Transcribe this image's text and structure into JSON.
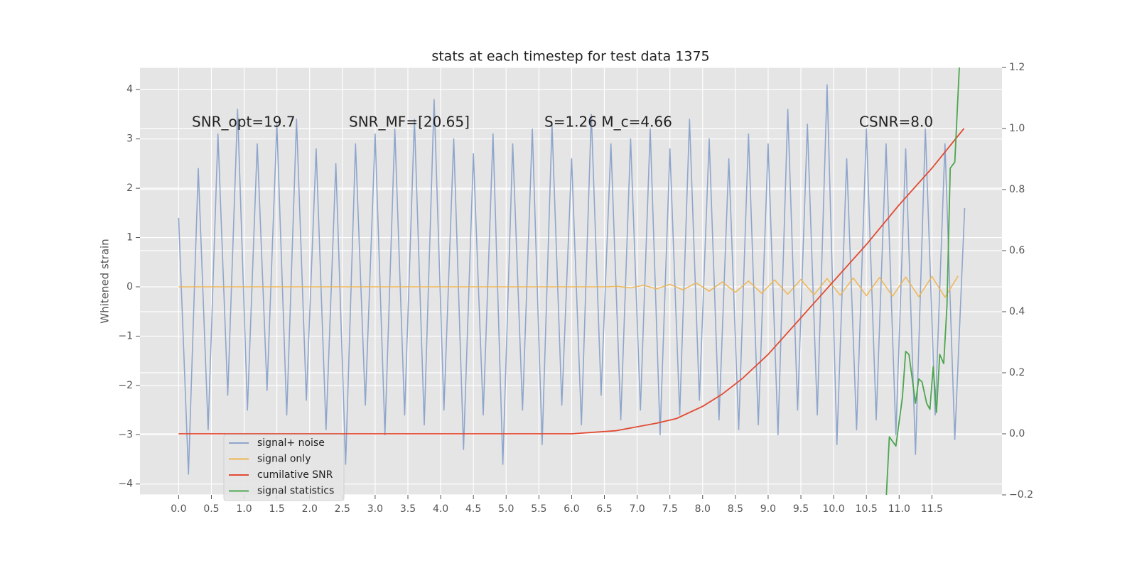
{
  "chart_data": {
    "type": "line",
    "title": "stats at each timestep for test data 1375",
    "ylabel": "Whitened strain",
    "annotations": [
      "SNR_opt=19.7",
      "SNR_MF=[20.65]",
      "S=1.26   M_c=4.66",
      "CSNR=8.0"
    ],
    "xlim": [
      -0.59,
      12.57
    ],
    "xticks": [
      {
        "value": 0,
        "label": "0.0"
      },
      0.5,
      {
        "value": 1,
        "label": "1.0"
      },
      1.5,
      {
        "value": 2,
        "label": "2.0"
      },
      2.5,
      {
        "value": 3,
        "label": "3.0"
      },
      3.5,
      {
        "value": 4,
        "label": "4.0"
      },
      4.5,
      {
        "value": 5,
        "label": "5.0"
      },
      5.5,
      {
        "value": 6,
        "label": "6.0"
      },
      6.5,
      {
        "value": 7,
        "label": "7.0"
      },
      7.5,
      {
        "value": 8,
        "label": "8.0"
      },
      8.5,
      {
        "value": 9,
        "label": "9.0"
      },
      9.5,
      {
        "value": 10,
        "label": "10.0"
      },
      10.5,
      {
        "value": 11,
        "label": "11.0"
      },
      11.5
    ],
    "ylim": [
      -4.22,
      4.45
    ],
    "yticks": [
      {
        "value": -4,
        "label": "−4"
      },
      {
        "value": -3,
        "label": "−3"
      },
      {
        "value": -2,
        "label": "−2"
      },
      {
        "value": -1,
        "label": "−1"
      },
      0,
      1,
      2,
      3,
      4
    ],
    "y2lim": [
      -0.2,
      1.2
    ],
    "y2ticks": [
      {
        "value": -0.2,
        "label": "−0.2"
      },
      {
        "value": 0,
        "label": "0.0"
      },
      0.2,
      0.4,
      0.6,
      0.8,
      {
        "value": 1,
        "label": "1.0"
      },
      1.2
    ],
    "grid": true,
    "legend": "lower left",
    "series": [
      {
        "name": "signal+ noise",
        "color": "#8fa6cc",
        "x": [
          0,
          0.15,
          0.3,
          0.45,
          0.6,
          0.75,
          0.9,
          1.05,
          1.2,
          1.35,
          1.5,
          1.65,
          1.8,
          1.95,
          2.1,
          2.25,
          2.4,
          2.55,
          2.7,
          2.85,
          3.0,
          3.15,
          3.3,
          3.45,
          3.6,
          3.75,
          3.9,
          4.05,
          4.2,
          4.35,
          4.5,
          4.65,
          4.8,
          4.95,
          5.1,
          5.25,
          5.4,
          5.55,
          5.7,
          5.85,
          6.0,
          6.15,
          6.3,
          6.45,
          6.6,
          6.75,
          6.9,
          7.05,
          7.2,
          7.35,
          7.5,
          7.65,
          7.8,
          7.95,
          8.1,
          8.25,
          8.4,
          8.55,
          8.7,
          8.85,
          9.0,
          9.15,
          9.3,
          9.45,
          9.6,
          9.75,
          9.9,
          10.05,
          10.2,
          10.35,
          10.5,
          10.65,
          10.8,
          10.95,
          11.1,
          11.25,
          11.4,
          11.55,
          11.7,
          11.85,
          12.0
        ],
        "values": [
          1.4,
          -3.8,
          2.4,
          -2.9,
          3.1,
          -2.2,
          3.6,
          -2.5,
          2.9,
          -2.1,
          3.3,
          -2.6,
          3.4,
          -2.3,
          2.8,
          -2.9,
          2.5,
          -3.6,
          2.9,
          -2.4,
          3.1,
          -3.0,
          3.2,
          -2.6,
          3.4,
          -2.8,
          3.8,
          -2.5,
          3.0,
          -3.3,
          2.7,
          -2.6,
          3.1,
          -3.6,
          2.9,
          -2.5,
          3.2,
          -3.2,
          3.3,
          -2.4,
          2.6,
          -2.8,
          3.5,
          -2.2,
          2.9,
          -2.7,
          3.0,
          -2.5,
          3.2,
          -3.0,
          2.8,
          -2.6,
          3.4,
          -2.3,
          3.0,
          -2.7,
          2.6,
          -2.9,
          3.1,
          -2.8,
          2.9,
          -3.0,
          3.6,
          -2.5,
          3.3,
          -2.6,
          4.1,
          -3.2,
          2.6,
          -2.9,
          3.2,
          -2.7,
          2.9,
          -3.0,
          2.8,
          -3.4,
          3.2,
          -2.6,
          2.9,
          -3.1,
          1.6
        ]
      },
      {
        "name": "signal only",
        "color": "#eeb44f",
        "x": [
          0,
          6.5,
          6.7,
          6.9,
          7.1,
          7.3,
          7.5,
          7.7,
          7.9,
          8.1,
          8.3,
          8.5,
          8.7,
          8.9,
          9.1,
          9.3,
          9.5,
          9.7,
          9.9,
          10.1,
          10.3,
          10.5,
          10.7,
          10.9,
          11.1,
          11.3,
          11.5,
          11.7,
          11.9
        ],
        "values": [
          0,
          0,
          0.01,
          -0.02,
          0.03,
          -0.04,
          0.05,
          -0.06,
          0.08,
          -0.09,
          0.1,
          -0.11,
          0.12,
          -0.13,
          0.14,
          -0.15,
          0.15,
          -0.16,
          0.17,
          -0.17,
          0.18,
          -0.18,
          0.19,
          -0.19,
          0.2,
          -0.2,
          0.21,
          -0.21,
          0.22
        ]
      },
      {
        "name": "cumilative SNR",
        "color": "#e24a33",
        "axis": "y2",
        "x": [
          0,
          6,
          6.67,
          7.3,
          7.6,
          8.0,
          8.3,
          8.6,
          9.0,
          9.5,
          10.0,
          10.5,
          11.0,
          11.5,
          11.99
        ],
        "values": [
          0,
          0,
          0.01,
          0.035,
          0.05,
          0.09,
          0.13,
          0.18,
          0.26,
          0.38,
          0.5,
          0.62,
          0.75,
          0.87,
          1.0
        ]
      },
      {
        "name": "signal statistics",
        "color": "#4ca64f",
        "axis": "y2",
        "x": [
          10.8,
          10.85,
          10.95,
          11.05,
          11.1,
          11.15,
          11.25,
          11.3,
          11.35,
          11.42,
          11.47,
          11.52,
          11.57,
          11.62,
          11.68,
          11.73,
          11.78,
          11.85,
          11.93
        ],
        "values": [
          -0.22,
          -0.01,
          -0.04,
          0.12,
          0.27,
          0.26,
          0.1,
          0.18,
          0.17,
          0.1,
          0.08,
          0.22,
          0.07,
          0.26,
          0.23,
          0.42,
          0.87,
          0.89,
          1.25
        ]
      }
    ]
  }
}
